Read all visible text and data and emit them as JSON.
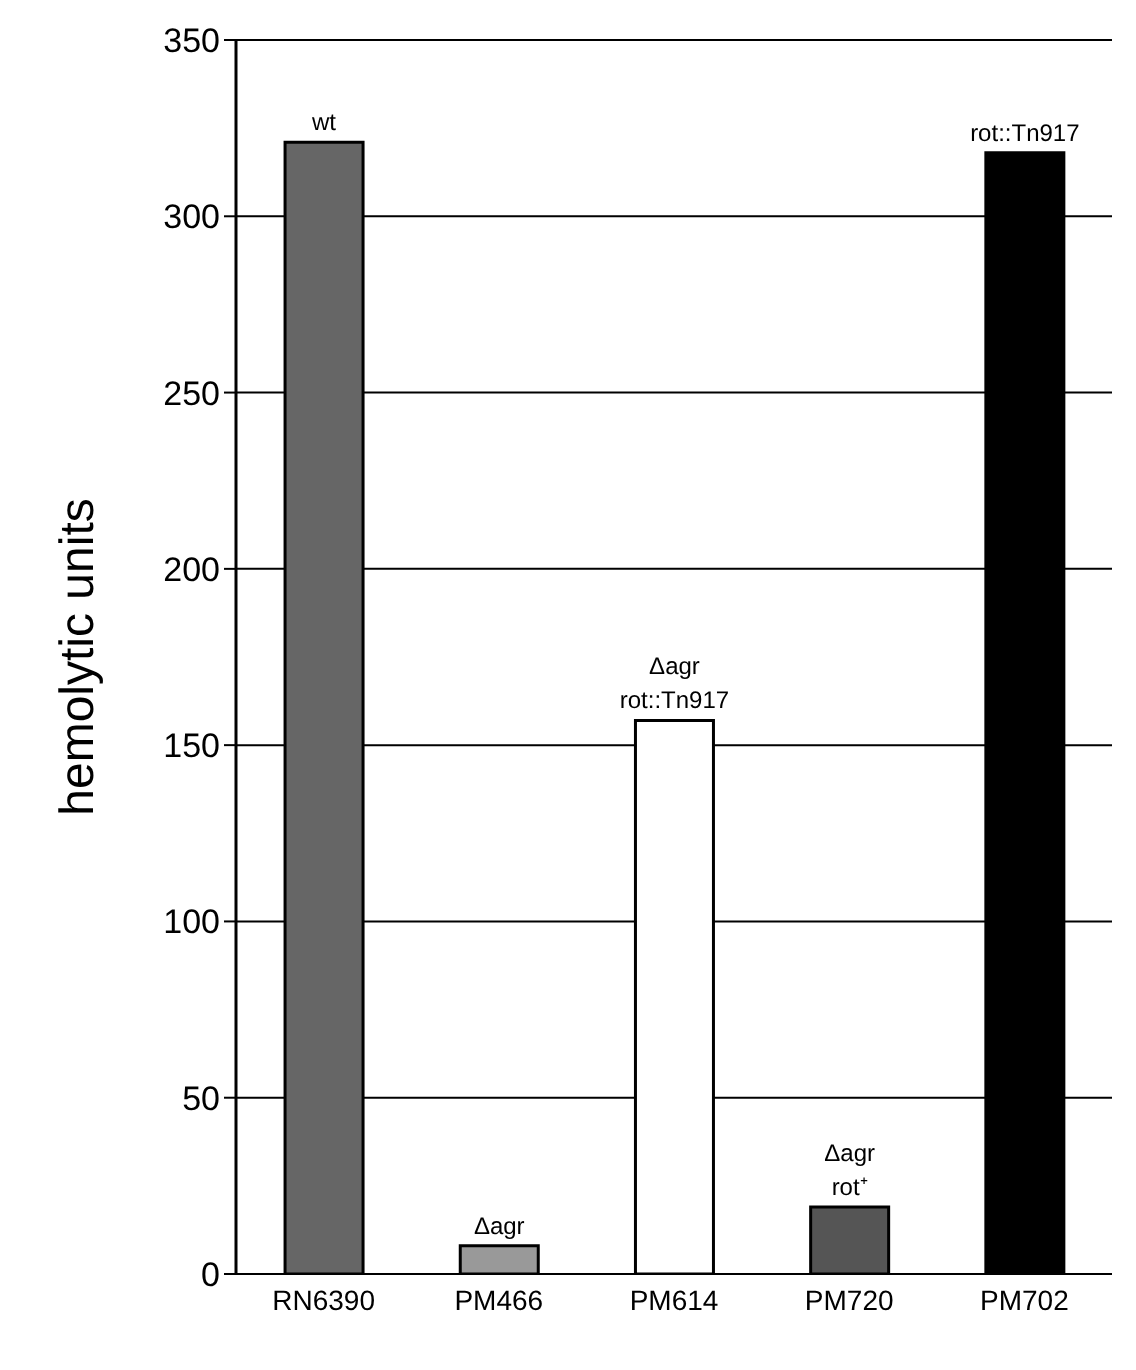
{
  "chart_data": {
    "type": "bar",
    "ylabel": "hemolytic units",
    "categories": [
      "RN6390",
      "PM466",
      "PM614",
      "PM720",
      "PM702"
    ],
    "values": [
      321,
      8,
      157,
      19,
      318
    ],
    "colors": [
      "#666666",
      "#999999",
      "#ffffff",
      "#555555",
      "#000000"
    ],
    "ylim": [
      0,
      350
    ],
    "yticks": [
      0,
      50,
      100,
      150,
      200,
      250,
      300,
      350
    ],
    "grid": "y",
    "annotations": [
      {
        "text": "wt",
        "x": "RN6390",
        "y": 321
      },
      {
        "text": "Δagr",
        "x": "PM466",
        "y": 8
      },
      {
        "text": "Δagr\nrot::Tn917",
        "x": "PM614",
        "y": 157
      },
      {
        "text": "Δagr\nrot⁺",
        "x": "PM720",
        "y": 19
      },
      {
        "text": "rot::Tn917",
        "x": "PM702",
        "y": 318
      }
    ]
  }
}
